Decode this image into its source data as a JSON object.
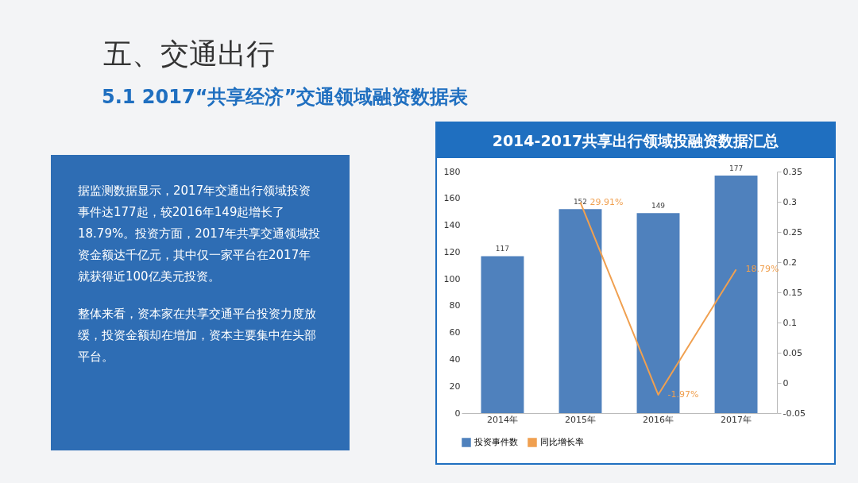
{
  "chart_data": {
    "type": "bar",
    "title": "五、交通出行",
    "subtitle": "5.1 2017“共享经济”交通领域融资数据表",
    "annotations": [
      "2014-2017共享出行领域投融资数据汇总",
      "据监测数据显示，2017年交通出行领域投资事件达177起，较2016年149起增长了18.79%。投资方面，2017年共享交通领域投资金额达千亿元，其中仅一家平台在2017年就获得近100亿美元投资。",
      "整体来看，资本家在共享交通平台投资力度放缓，投资金额却在增加，资本主要集中在头部平台。"
    ],
    "categories": [
      "2014年",
      "2015年",
      "2016年",
      "2017年"
    ],
    "series": [
      {
        "name": "投资事件数",
        "color": "#4f81bd",
        "values": [
          117,
          152,
          149,
          177
        ]
      },
      {
        "name": "同比增长率",
        "type": "line",
        "axis": "y2",
        "color": "#f0a050",
        "values": [
          null,
          0.2991,
          -0.0197,
          0.1879
        ],
        "value_labels": [
          null,
          "29.91%",
          "-1.97%",
          "18.79%"
        ]
      }
    ],
    "data_labels": true,
    "ylim": [
      0,
      180
    ],
    "yticks": [
      0,
      20,
      40,
      60,
      80,
      100,
      120,
      140,
      160,
      180
    ],
    "y2lim": [
      -0.05,
      0.35
    ],
    "y2ticks": [
      -0.05,
      0,
      0.05,
      0.1,
      0.15,
      0.2,
      0.25,
      0.3,
      0.35
    ],
    "grid": false,
    "legend": "bottom"
  }
}
